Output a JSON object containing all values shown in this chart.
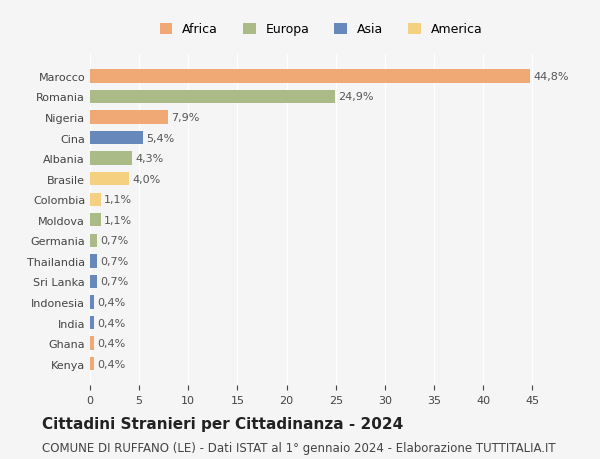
{
  "countries": [
    "Marocco",
    "Romania",
    "Nigeria",
    "Cina",
    "Albania",
    "Brasile",
    "Colombia",
    "Moldova",
    "Germania",
    "Thailandia",
    "Sri Lanka",
    "Indonesia",
    "India",
    "Ghana",
    "Kenya"
  ],
  "values": [
    44.8,
    24.9,
    7.9,
    5.4,
    4.3,
    4.0,
    1.1,
    1.1,
    0.7,
    0.7,
    0.7,
    0.4,
    0.4,
    0.4,
    0.4
  ],
  "labels": [
    "44,8%",
    "24,9%",
    "7,9%",
    "5,4%",
    "4,3%",
    "4,0%",
    "1,1%",
    "1,1%",
    "0,7%",
    "0,7%",
    "0,7%",
    "0,4%",
    "0,4%",
    "0,4%",
    "0,4%"
  ],
  "colors": [
    "#F0A875",
    "#AABB88",
    "#F0A875",
    "#6688BB",
    "#AABB88",
    "#F5D080",
    "#F5D080",
    "#AABB88",
    "#AABB88",
    "#6688BB",
    "#6688BB",
    "#6688BB",
    "#6688BB",
    "#F0A875",
    "#F0A875"
  ],
  "legend_labels": [
    "Africa",
    "Europa",
    "Asia",
    "America"
  ],
  "legend_colors": [
    "#F0A875",
    "#AABB88",
    "#6688BB",
    "#F5D080"
  ],
  "title": "Cittadini Stranieri per Cittadinanza - 2024",
  "subtitle": "COMUNE DI RUFFANO (LE) - Dati ISTAT al 1° gennaio 2024 - Elaborazione TUTTITALIA.IT",
  "xlim": [
    0,
    47
  ],
  "xticks": [
    0,
    5,
    10,
    15,
    20,
    25,
    30,
    35,
    40,
    45
  ],
  "background_color": "#f5f5f5",
  "bar_height": 0.65,
  "title_fontsize": 11,
  "subtitle_fontsize": 8.5,
  "label_fontsize": 8,
  "tick_fontsize": 8,
  "legend_fontsize": 9
}
